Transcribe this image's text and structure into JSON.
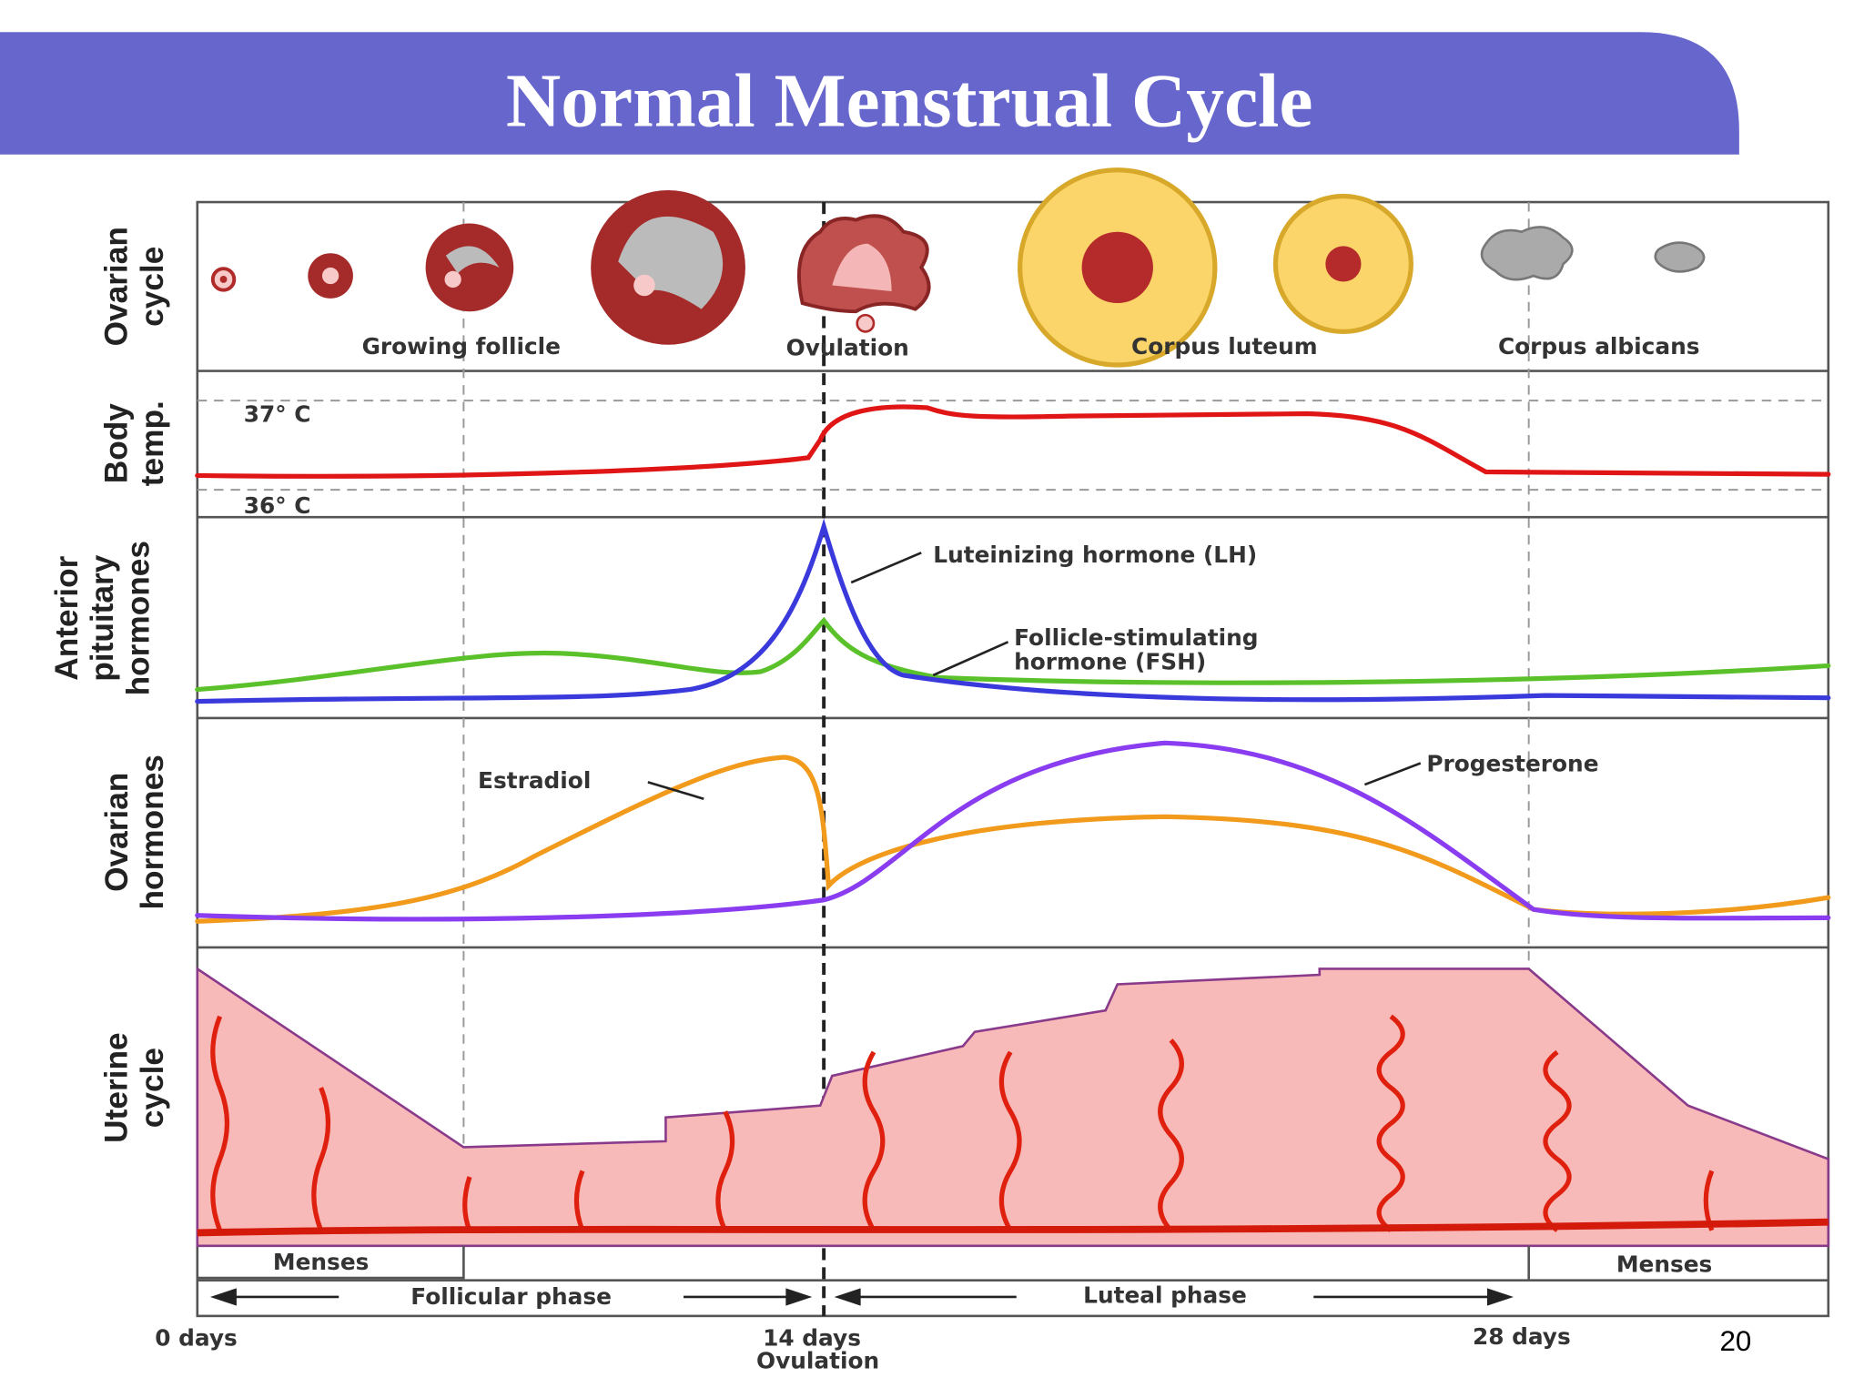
{
  "header": {
    "title": "Normal Menstrual Cycle"
  },
  "rows": [
    [
      "Ovarian",
      "cycle"
    ],
    [
      "Body",
      "temp."
    ],
    [
      "Anterior",
      "pituitary",
      "hormones"
    ],
    [
      "Ovarian",
      "hormones"
    ],
    [
      "Uterine",
      "cycle"
    ]
  ],
  "ovarian_stages": [
    "Growing follicle",
    "Ovulation",
    "Corpus luteum",
    "Corpus albicans"
  ],
  "temperatures": [
    "37° C",
    "36° C"
  ],
  "hormone_labels": {
    "lh": "Luteinizing hormone (LH)",
    "fsh": [
      "Follicle-stimulating",
      "hormone (FSH)"
    ],
    "estradiol": "Estradiol",
    "progesterone": "Progesterone"
  },
  "menses": [
    "Menses",
    "Menses"
  ],
  "phases": [
    "Follicular phase",
    "Luteal phase"
  ],
  "days": [
    "0 days",
    "14 days",
    "28 days"
  ],
  "ovulation_day": "Ovulation",
  "page_number": "20"
}
